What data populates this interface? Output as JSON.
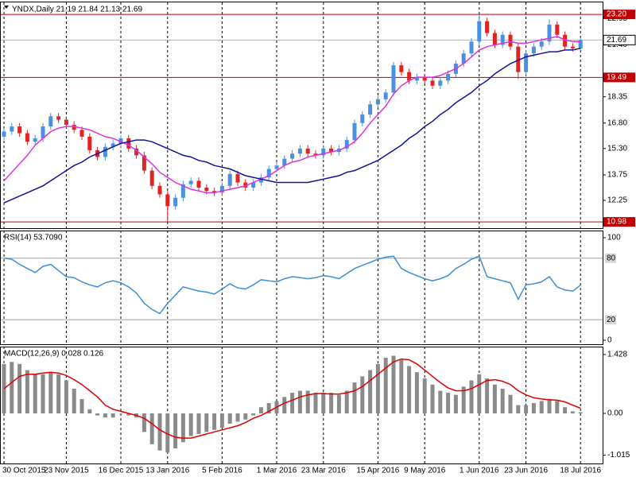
{
  "chart_data": [
    {
      "type": "candlestick",
      "title": "YNDX,Daily  21.19 21.84 21.13 21.69",
      "categories": [
        "30 Oct 2015",
        null,
        null,
        null,
        null,
        null,
        null,
        null,
        "23 Nov 2015",
        null,
        null,
        null,
        null,
        null,
        null,
        "16 Dec 2015",
        null,
        null,
        null,
        null,
        null,
        "13 Jan 2016",
        null,
        null,
        null,
        null,
        null,
        null,
        "5 Feb 2016",
        null,
        null,
        null,
        null,
        null,
        null,
        "1 Mar 2016",
        null,
        null,
        null,
        null,
        null,
        "23 Mar 2016",
        null,
        null,
        null,
        null,
        null,
        null,
        "15 Apr 2016",
        null,
        null,
        null,
        null,
        null,
        "9 May 2016",
        null,
        null,
        null,
        null,
        null,
        null,
        "1 Jun 2016",
        null,
        null,
        null,
        null,
        null,
        "23 Jun 2016",
        null,
        null,
        null,
        null,
        null,
        null,
        "18 Jul 2016"
      ],
      "open": [
        16.0,
        16.3,
        16.6,
        16.2,
        15.7,
        15.9,
        16.6,
        17.2,
        17.0,
        16.7,
        16.4,
        16.0,
        15.2,
        14.8,
        15.4,
        15.6,
        15.9,
        15.3,
        14.9,
        14.0,
        13.1,
        12.6,
        11.9,
        12.4,
        13.2,
        13.4,
        13.0,
        12.8,
        12.7,
        13.1,
        13.8,
        13.3,
        13.0,
        13.3,
        13.6,
        14.1,
        14.3,
        14.7,
        15.0,
        15.3,
        15.0,
        14.9,
        15.3,
        15.1,
        15.3,
        15.8,
        16.8,
        17.3,
        17.9,
        18.2,
        18.6,
        20.2,
        19.8,
        19.3,
        19.5,
        19.3,
        19.0,
        19.3,
        19.7,
        20.3,
        20.9,
        21.6,
        22.8,
        22.1,
        21.4,
        22.0,
        21.3,
        19.8,
        20.9,
        21.3,
        21.6,
        22.6,
        22.0,
        21.3,
        21.19
      ],
      "high": [
        16.5,
        16.8,
        16.8,
        16.4,
        16.1,
        16.8,
        17.4,
        17.4,
        17.2,
        16.9,
        16.6,
        16.2,
        15.4,
        15.6,
        15.8,
        16.1,
        16.1,
        15.5,
        15.1,
        14.2,
        13.3,
        12.8,
        12.6,
        13.4,
        13.6,
        13.6,
        13.2,
        13.0,
        13.3,
        14.0,
        14.0,
        13.5,
        13.5,
        13.8,
        14.3,
        14.5,
        14.9,
        15.2,
        15.5,
        15.5,
        15.2,
        15.5,
        15.5,
        15.5,
        16.0,
        17.0,
        17.5,
        18.1,
        18.4,
        18.8,
        20.4,
        20.4,
        20.0,
        19.7,
        19.7,
        19.5,
        19.5,
        19.9,
        20.5,
        21.1,
        21.8,
        23.2,
        23.0,
        22.3,
        22.2,
        22.2,
        21.5,
        21.1,
        21.5,
        21.8,
        22.9,
        22.8,
        22.2,
        21.5,
        21.84
      ],
      "low": [
        15.8,
        16.1,
        16.0,
        15.5,
        15.5,
        15.7,
        16.4,
        16.8,
        16.5,
        16.2,
        15.8,
        15.0,
        14.6,
        14.6,
        15.2,
        15.4,
        15.1,
        14.7,
        13.8,
        12.9,
        12.4,
        11.0,
        11.7,
        12.2,
        13.0,
        12.8,
        12.6,
        12.5,
        12.5,
        12.9,
        13.1,
        12.8,
        12.8,
        13.1,
        13.4,
        13.9,
        14.1,
        14.5,
        14.8,
        14.8,
        14.7,
        14.7,
        14.9,
        14.9,
        15.1,
        15.6,
        16.6,
        17.1,
        17.7,
        18.0,
        18.4,
        19.6,
        19.1,
        19.1,
        19.1,
        18.8,
        18.8,
        19.1,
        19.5,
        20.1,
        20.7,
        21.4,
        21.9,
        21.2,
        21.2,
        21.1,
        19.4,
        19.6,
        20.7,
        21.1,
        21.4,
        21.8,
        21.1,
        21.0,
        21.13
      ],
      "close": [
        16.3,
        16.6,
        16.2,
        15.7,
        15.9,
        16.6,
        17.2,
        17.0,
        16.7,
        16.4,
        16.0,
        15.2,
        14.8,
        15.4,
        15.6,
        15.9,
        15.3,
        14.9,
        14.0,
        13.1,
        12.6,
        11.9,
        12.4,
        13.2,
        13.4,
        13.0,
        12.8,
        12.7,
        13.1,
        13.8,
        13.3,
        13.0,
        13.3,
        13.6,
        14.1,
        14.3,
        14.7,
        15.0,
        15.3,
        15.0,
        14.9,
        15.3,
        15.1,
        15.3,
        15.8,
        16.8,
        17.3,
        17.9,
        18.2,
        18.6,
        20.2,
        19.8,
        19.3,
        19.5,
        19.3,
        19.0,
        19.3,
        19.7,
        20.3,
        20.9,
        21.6,
        22.8,
        22.1,
        21.4,
        22.0,
        21.3,
        19.8,
        20.9,
        21.3,
        21.6,
        22.6,
        22.0,
        21.3,
        21.2,
        21.69
      ],
      "up_color": "#4a90e2",
      "down_color": "#e02424",
      "lines": [
        {
          "color": "#e030e0",
          "values": [
            13.4,
            13.9,
            14.4,
            14.9,
            15.5,
            15.9,
            16.3,
            16.5,
            16.6,
            16.6,
            16.5,
            16.4,
            16.2,
            16.0,
            15.9,
            15.7,
            15.5,
            15.2,
            14.8,
            14.4,
            13.9,
            13.6,
            13.3,
            13.1,
            12.9,
            12.8,
            12.7,
            12.7,
            12.8,
            12.9,
            13.0,
            13.1,
            13.3,
            13.5,
            13.7,
            14.0,
            14.3,
            14.5,
            14.6,
            14.8,
            14.9,
            15.0,
            15.1,
            15.2,
            15.4,
            15.7,
            16.2,
            16.8,
            17.3,
            17.8,
            18.5,
            19.0,
            19.3,
            19.5,
            19.5,
            19.5,
            19.6,
            19.8,
            20.0,
            20.3,
            20.7,
            21.1,
            21.3,
            21.4,
            21.5,
            21.6,
            21.5,
            21.5,
            21.6,
            21.7,
            21.8,
            21.9,
            21.7,
            21.6,
            21.6
          ]
        },
        {
          "color": "#12129c",
          "values": [
            12.1,
            12.3,
            12.5,
            12.7,
            12.9,
            13.1,
            13.4,
            13.7,
            14.0,
            14.3,
            14.5,
            14.8,
            15.0,
            15.2,
            15.4,
            15.6,
            15.7,
            15.8,
            15.8,
            15.7,
            15.5,
            15.3,
            15.1,
            14.9,
            14.8,
            14.6,
            14.5,
            14.3,
            14.2,
            14.1,
            13.9,
            13.7,
            13.6,
            13.5,
            13.4,
            13.3,
            13.3,
            13.3,
            13.3,
            13.3,
            13.4,
            13.5,
            13.6,
            13.7,
            13.9,
            14.0,
            14.2,
            14.4,
            14.6,
            14.9,
            15.2,
            15.5,
            15.9,
            16.2,
            16.6,
            16.9,
            17.3,
            17.6,
            18.0,
            18.3,
            18.6,
            19.0,
            19.3,
            19.7,
            20.0,
            20.3,
            20.5,
            20.7,
            20.8,
            20.9,
            21.0,
            21.0,
            21.1,
            21.1,
            21.2
          ]
        }
      ],
      "levels": [
        {
          "value": 23.2,
          "label": "23.20"
        },
        19.49,
        10.98
      ],
      "level_color": "#c00000",
      "current_price": 21.69,
      "ylim": [
        10.61,
        23.86
      ],
      "yticks": [
        22.95,
        {
          "value": 21.4,
          "label": "21.40"
        },
        18.35,
        {
          "value": 16.8,
          "label": "16.80"
        },
        {
          "value": 15.3,
          "label": "15.30"
        },
        13.75,
        12.25
      ]
    },
    {
      "type": "line",
      "title": "RSI(14) 53.7090",
      "color": "#3a8fd8",
      "values": [
        80,
        79,
        74,
        70,
        66,
        72,
        74,
        68,
        62,
        61,
        57,
        54,
        52,
        56,
        58,
        56,
        52,
        46,
        36,
        30,
        26,
        36,
        44,
        52,
        50,
        48,
        47,
        45,
        50,
        55,
        51,
        50,
        54,
        59,
        58,
        57,
        60,
        62,
        61,
        60,
        61,
        63,
        62,
        60,
        65,
        70,
        73,
        76,
        79,
        81,
        82,
        70,
        66,
        63,
        60,
        58,
        60,
        63,
        70,
        74,
        79,
        82,
        62,
        60,
        58,
        56,
        40,
        54,
        55,
        57,
        62,
        52,
        49,
        48,
        53.709
      ],
      "levels": [
        80,
        20
      ],
      "level_color": "#a0a0a0",
      "ylim": [
        -3.9,
        106.2
      ],
      "yticks": [
        100,
        0
      ]
    },
    {
      "type": "bar",
      "title": "MACD(12,26,9) 0.028 0.126",
      "color": "#8a8a8a",
      "values": [
        1.2,
        1.25,
        1.2,
        1.05,
        0.95,
        0.95,
        1.0,
        0.95,
        0.8,
        0.6,
        0.35,
        0.1,
        -0.05,
        -0.1,
        -0.1,
        0.0,
        -0.05,
        -0.1,
        -0.45,
        -0.75,
        -0.9,
        -0.95,
        -0.85,
        -0.7,
        -0.55,
        -0.5,
        -0.45,
        -0.4,
        -0.35,
        -0.25,
        -0.2,
        -0.15,
        -0.05,
        0.15,
        0.25,
        0.3,
        0.4,
        0.5,
        0.55,
        0.55,
        0.5,
        0.5,
        0.5,
        0.45,
        0.55,
        0.75,
        0.9,
        1.05,
        1.2,
        1.35,
        1.4,
        1.3,
        1.15,
        1.0,
        0.85,
        0.7,
        0.55,
        0.5,
        0.45,
        0.65,
        0.8,
        0.95,
        0.85,
        0.7,
        0.6,
        0.45,
        0.2,
        0.2,
        0.25,
        0.3,
        0.35,
        0.3,
        0.15,
        0.05,
        0.028
      ],
      "lines": [
        {
          "color": "#e00000",
          "values": [
            0.6,
            0.75,
            0.9,
            0.95,
            0.95,
            0.98,
            1.0,
            0.98,
            0.92,
            0.82,
            0.7,
            0.55,
            0.4,
            0.2,
            0.1,
            0.05,
            0.0,
            -0.05,
            -0.12,
            -0.25,
            -0.4,
            -0.5,
            -0.58,
            -0.6,
            -0.6,
            -0.55,
            -0.5,
            -0.45,
            -0.4,
            -0.35,
            -0.3,
            -0.22,
            -0.12,
            -0.05,
            0.05,
            0.15,
            0.25,
            0.32,
            0.4,
            0.45,
            0.48,
            0.48,
            0.47,
            0.47,
            0.5,
            0.55,
            0.65,
            0.8,
            0.95,
            1.1,
            1.25,
            1.32,
            1.3,
            1.2,
            1.05,
            0.9,
            0.75,
            0.62,
            0.55,
            0.55,
            0.6,
            0.7,
            0.8,
            0.82,
            0.78,
            0.7,
            0.55,
            0.45,
            0.38,
            0.35,
            0.33,
            0.32,
            0.28,
            0.2,
            0.126
          ]
        }
      ],
      "ylim": [
        -1.216,
        1.602
      ],
      "yticks": [
        1.428,
        {
          "value": 0,
          "label": "0.00"
        },
        -1.015
      ]
    }
  ]
}
